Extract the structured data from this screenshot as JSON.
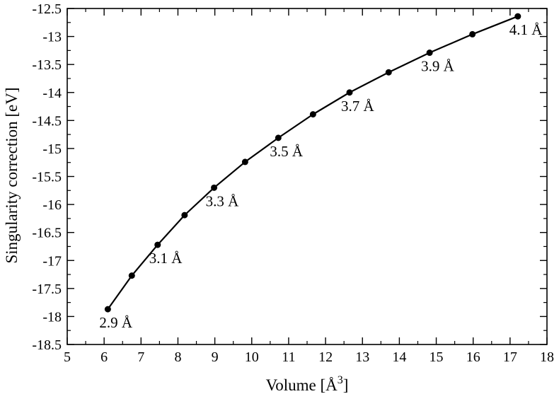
{
  "chart_data": {
    "type": "line",
    "xlabel": "Volume [Å",
    "xlabel_superscript": "3",
    "xlabel_suffix": "]",
    "ylabel": "Singularity correction [eV]",
    "xlim": [
      5,
      18
    ],
    "ylim": [
      -18.5,
      -12.5
    ],
    "grid": false,
    "x_ticks": [
      5,
      6,
      7,
      8,
      9,
      10,
      11,
      12,
      13,
      14,
      15,
      16,
      17,
      18
    ],
    "x_tick_labels": [
      "5",
      "6",
      "7",
      "8",
      "9",
      "10",
      "11",
      "12",
      "13",
      "14",
      "15",
      "16",
      "17",
      "18"
    ],
    "y_ticks": [
      -12.5,
      -13,
      -13.5,
      -14,
      -14.5,
      -15,
      -15.5,
      -16,
      -16.5,
      -17,
      -17.5,
      -18,
      -18.5
    ],
    "y_tick_labels": [
      "-12.5",
      "-13",
      "-13.5",
      "-14",
      "-14.5",
      "-15",
      "-15.5",
      "-16",
      "-16.5",
      "-17",
      "-17.5",
      "-18",
      "-18.5"
    ],
    "series": [
      {
        "x": [
          6.1,
          6.75,
          7.45,
          8.18,
          8.98,
          9.82,
          10.72,
          11.66,
          12.65,
          13.71,
          14.82,
          15.98,
          17.21
        ],
        "y": [
          -17.87,
          -17.27,
          -16.72,
          -16.19,
          -15.7,
          -15.24,
          -14.81,
          -14.39,
          -14.0,
          -13.64,
          -13.29,
          -12.96,
          -12.64
        ],
        "color": "#000000"
      }
    ],
    "annotations": [
      {
        "text": "2.9 Å",
        "x": 6.1,
        "y": -17.87
      },
      {
        "text": "3.1 Å",
        "x": 7.45,
        "y": -16.72
      },
      {
        "text": "3.3 Å",
        "x": 8.98,
        "y": -15.7
      },
      {
        "text": "3.5 Å",
        "x": 10.72,
        "y": -14.81
      },
      {
        "text": "3.7 Å",
        "x": 12.65,
        "y": -14.0
      },
      {
        "text": "3.9 Å",
        "x": 14.82,
        "y": -13.29
      },
      {
        "text": "4.1 Å",
        "x": 17.21,
        "y": -12.64
      }
    ]
  }
}
